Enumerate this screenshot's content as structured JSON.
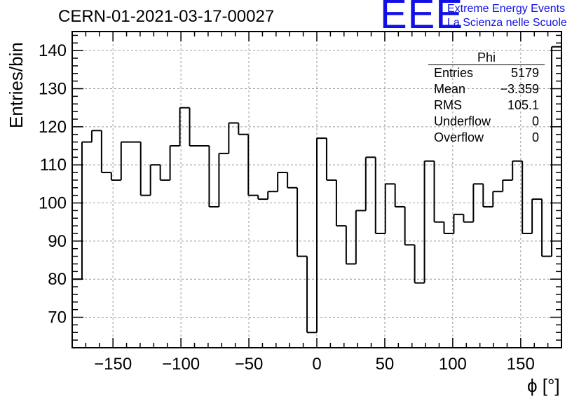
{
  "header": {
    "run_title": "CERN-01-2021-03-17-00027",
    "logo_text": "EEE",
    "logo_line1": "Extreme Energy Events",
    "logo_line2": "La Scienza nelle Scuole"
  },
  "stats_box": {
    "name": "Phi",
    "rows": [
      {
        "key": "Entries",
        "value": "5179"
      },
      {
        "key": "Mean",
        "value": "−3.359"
      },
      {
        "key": "RMS",
        "value": "105.1"
      },
      {
        "key": "Underflow",
        "value": "0"
      },
      {
        "key": "Overflow",
        "value": "0"
      }
    ]
  },
  "chart_data": {
    "type": "histogram",
    "title": "CERN-01-2021-03-17-00027",
    "xlabel": "ϕ [°]",
    "ylabel": "Entries/bin",
    "xlim": [
      -180,
      180
    ],
    "ylim": [
      62,
      145
    ],
    "bin_width": 7.2,
    "grid": true,
    "x_ticks": [
      -150,
      -100,
      -50,
      0,
      50,
      100,
      150
    ],
    "x_tick_labels": [
      "−150",
      "−100",
      "−50",
      "0",
      "50",
      "100",
      "150"
    ],
    "y_ticks": [
      70,
      80,
      90,
      100,
      110,
      120,
      130,
      140
    ],
    "y_tick_labels": [
      "70",
      "80",
      "90",
      "100",
      "110",
      "120",
      "130",
      "140"
    ],
    "values": [
      80,
      116,
      119,
      108,
      106,
      116,
      116,
      102,
      110,
      106,
      115,
      125,
      115,
      115,
      99,
      113,
      121,
      118,
      102,
      101,
      103,
      108,
      104,
      86,
      66,
      117,
      106,
      94,
      84,
      98,
      112,
      92,
      105,
      99,
      89,
      79,
      111,
      95,
      92,
      97,
      95,
      105,
      99,
      103,
      106,
      111,
      92,
      101,
      86,
      141
    ]
  }
}
